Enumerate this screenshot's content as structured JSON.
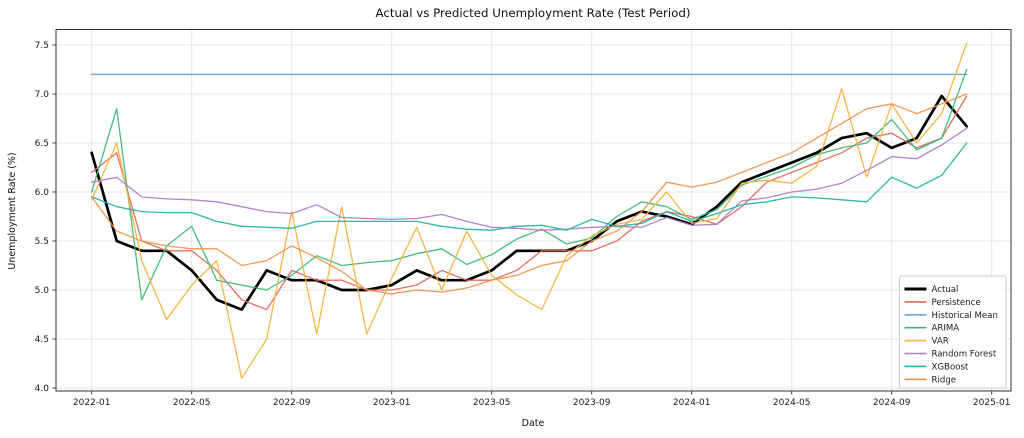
{
  "chart_data": {
    "type": "line",
    "title": "Actual vs Predicted Unemployment Rate (Test Period)",
    "xlabel": "Date",
    "ylabel": "Unemployment Rate (%)",
    "grid": true,
    "legend_position": "lower right",
    "ylim": [
      3.97,
      7.66
    ],
    "y_ticks": [
      4.0,
      4.5,
      5.0,
      5.5,
      6.0,
      6.5,
      7.0,
      7.5
    ],
    "x_tick_labels": [
      "2022-01",
      "2022-05",
      "2022-09",
      "2023-01",
      "2023-05",
      "2023-09",
      "2024-01",
      "2024-05",
      "2024-09",
      "2025-01"
    ],
    "months": [
      "2022-01",
      "2022-02",
      "2022-03",
      "2022-04",
      "2022-05",
      "2022-06",
      "2022-07",
      "2022-08",
      "2022-09",
      "2022-10",
      "2022-11",
      "2022-12",
      "2023-01",
      "2023-02",
      "2023-03",
      "2023-04",
      "2023-05",
      "2023-06",
      "2023-07",
      "2023-08",
      "2023-09",
      "2023-10",
      "2023-11",
      "2023-12",
      "2024-01",
      "2024-02",
      "2024-03",
      "2024-04",
      "2024-05",
      "2024-06",
      "2024-07",
      "2024-08",
      "2024-09",
      "2024-10",
      "2024-11",
      "2024-12"
    ],
    "series": [
      {
        "name": "Actual",
        "color": "#000000",
        "width": 2.7,
        "values": [
          6.4,
          5.5,
          5.4,
          5.4,
          5.2,
          4.9,
          4.8,
          5.2,
          5.1,
          5.1,
          5.0,
          5.0,
          5.05,
          5.2,
          5.1,
          5.1,
          5.2,
          5.4,
          5.4,
          5.4,
          5.5,
          5.7,
          5.8,
          5.75,
          5.67,
          5.85,
          6.1,
          6.2,
          6.3,
          6.4,
          6.55,
          6.6,
          6.45,
          6.55,
          6.98,
          6.67
        ]
      },
      {
        "name": "Persistence",
        "color": "#e0685a",
        "width": 1.3,
        "values": [
          6.2,
          6.4,
          5.5,
          5.4,
          5.4,
          5.2,
          4.9,
          4.8,
          5.2,
          5.1,
          5.1,
          5.0,
          5.0,
          5.05,
          5.2,
          5.1,
          5.1,
          5.2,
          5.4,
          5.4,
          5.4,
          5.5,
          5.7,
          5.8,
          5.75,
          5.67,
          5.85,
          6.1,
          6.2,
          6.3,
          6.4,
          6.55,
          6.6,
          6.45,
          6.55,
          6.98
        ]
      },
      {
        "name": "Historical Mean",
        "color": "#74a7dd",
        "width": 1.5,
        "values": [
          7.2,
          7.2,
          7.2,
          7.2,
          7.2,
          7.2,
          7.2,
          7.2,
          7.2,
          7.2,
          7.2,
          7.2,
          7.2,
          7.2,
          7.2,
          7.2,
          7.2,
          7.2,
          7.2,
          7.2,
          7.2,
          7.2,
          7.2,
          7.2,
          7.2,
          7.2,
          7.2,
          7.2,
          7.2,
          7.2,
          7.2,
          7.2,
          7.2,
          7.2,
          7.2,
          7.2
        ]
      },
      {
        "name": "ARIMA",
        "color": "#3cb878",
        "width": 1.3,
        "values": [
          6.0,
          6.85,
          4.9,
          5.45,
          5.65,
          5.1,
          5.05,
          5.0,
          5.15,
          5.35,
          5.25,
          5.28,
          5.3,
          5.37,
          5.42,
          5.26,
          5.36,
          5.52,
          5.62,
          5.47,
          5.53,
          5.75,
          5.9,
          5.85,
          5.72,
          5.82,
          6.07,
          6.16,
          6.25,
          6.38,
          6.45,
          6.5,
          6.74,
          6.43,
          6.55,
          7.25
        ]
      },
      {
        "name": "VAR",
        "color": "#f3b33e",
        "width": 1.3,
        "values": [
          5.92,
          6.5,
          5.3,
          4.7,
          5.05,
          5.3,
          4.1,
          4.5,
          5.8,
          4.55,
          5.85,
          4.55,
          5.12,
          5.64,
          5.0,
          5.6,
          5.15,
          4.95,
          4.8,
          5.35,
          5.55,
          5.67,
          5.72,
          6.0,
          5.68,
          5.73,
          6.09,
          6.12,
          6.09,
          6.26,
          7.05,
          6.15,
          6.9,
          6.5,
          6.8,
          7.52
        ]
      },
      {
        "name": "Random Forest",
        "color": "#ad7fc8",
        "width": 1.3,
        "values": [
          6.1,
          6.15,
          5.95,
          5.93,
          5.92,
          5.9,
          5.85,
          5.8,
          5.78,
          5.87,
          5.74,
          5.73,
          5.72,
          5.73,
          5.77,
          5.7,
          5.64,
          5.63,
          5.61,
          5.62,
          5.64,
          5.65,
          5.64,
          5.74,
          5.66,
          5.67,
          5.91,
          5.94,
          6.0,
          6.03,
          6.09,
          6.22,
          6.36,
          6.34,
          6.48,
          6.65
        ]
      },
      {
        "name": "XGBoost",
        "color": "#27b3a2",
        "width": 1.3,
        "values": [
          5.95,
          5.85,
          5.8,
          5.79,
          5.79,
          5.7,
          5.65,
          5.64,
          5.63,
          5.7,
          5.7,
          5.7,
          5.7,
          5.7,
          5.65,
          5.62,
          5.61,
          5.65,
          5.66,
          5.61,
          5.72,
          5.65,
          5.68,
          5.8,
          5.7,
          5.78,
          5.87,
          5.9,
          5.95,
          5.94,
          5.92,
          5.9,
          6.15,
          6.04,
          6.17,
          6.5
        ]
      },
      {
        "name": "Ridge",
        "color": "#f0934a",
        "width": 1.3,
        "values": [
          5.95,
          5.6,
          5.5,
          5.45,
          5.42,
          5.42,
          5.25,
          5.3,
          5.45,
          5.33,
          5.19,
          5.0,
          4.96,
          5.0,
          4.98,
          5.02,
          5.1,
          5.15,
          5.25,
          5.3,
          5.5,
          5.6,
          5.8,
          6.1,
          6.05,
          6.1,
          6.2,
          6.3,
          6.4,
          6.55,
          6.7,
          6.85,
          6.9,
          6.8,
          6.9,
          7.0
        ]
      }
    ],
    "colors": {
      "grid": "#e4e4e4",
      "spine": "#333333",
      "legend_border": "#cccccc",
      "legend_bg": "#ffffff"
    }
  }
}
